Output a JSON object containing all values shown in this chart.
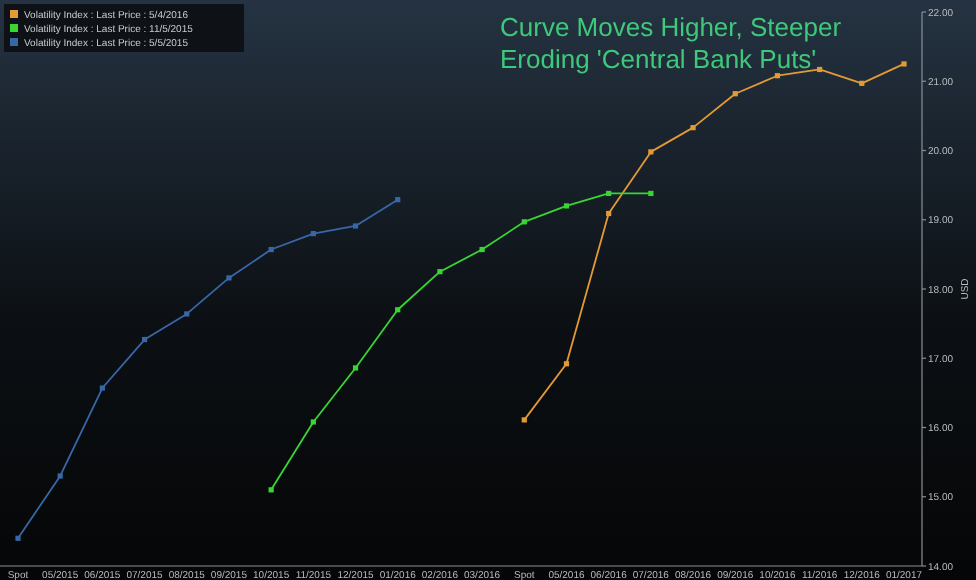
{
  "chart_data": {
    "type": "line",
    "title": "Curve Moves Higher, Steeper\nEroding 'Central Bank Puts'",
    "ylabel": "USD",
    "categories": [
      "Spot",
      "05/2015",
      "06/2015",
      "07/2015",
      "08/2015",
      "09/2015",
      "10/2015",
      "11/2015",
      "12/2015",
      "01/2016",
      "02/2016",
      "03/2016",
      "Spot",
      "05/2016",
      "06/2016",
      "07/2016",
      "08/2016",
      "09/2016",
      "10/2016",
      "11/2016",
      "12/2016",
      "01/2017"
    ],
    "series": [
      {
        "name": "Volatility Index : Last Price : 5/4/2016",
        "color": "#e39a35",
        "values": [
          null,
          null,
          null,
          null,
          null,
          null,
          null,
          null,
          null,
          null,
          null,
          null,
          16.11,
          16.92,
          19.09,
          19.98,
          20.33,
          20.82,
          21.08,
          21.17,
          20.97,
          21.25
        ]
      },
      {
        "name": "Volatility Index : Last Price : 11/5/2015",
        "color": "#37d632",
        "values": [
          null,
          null,
          null,
          null,
          null,
          null,
          15.1,
          16.08,
          16.86,
          17.7,
          18.25,
          18.57,
          18.97,
          19.2,
          19.38,
          19.38,
          null,
          null,
          null,
          null,
          null,
          null
        ]
      },
      {
        "name": "Volatility Index : Last Price : 5/5/2015",
        "color": "#3867a8",
        "values": [
          14.4,
          15.3,
          16.57,
          17.27,
          17.64,
          18.16,
          18.57,
          18.8,
          18.91,
          19.29,
          null,
          null,
          null,
          null,
          null,
          null,
          null,
          null,
          null,
          null,
          null,
          null
        ]
      }
    ],
    "ylim": [
      14,
      22
    ],
    "yticks": [
      {
        "value": 14,
        "label": "14.00"
      },
      {
        "value": 15,
        "label": "15.00"
      },
      {
        "value": 16,
        "label": "16.00"
      },
      {
        "value": 17,
        "label": "17.00"
      },
      {
        "value": 18,
        "label": "18.00"
      },
      {
        "value": 19,
        "label": "19.00"
      },
      {
        "value": 20,
        "label": "20.00"
      },
      {
        "value": 21,
        "label": "21.00"
      },
      {
        "value": 22,
        "label": "22.00"
      }
    ],
    "legend": "top left",
    "marker": "square",
    "line_style": "solid"
  }
}
